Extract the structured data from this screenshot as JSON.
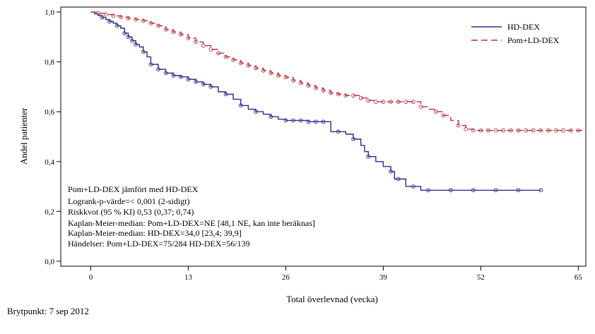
{
  "chart_data": {
    "type": "line",
    "title": "",
    "xlabel": "Total överlevnad (vecka)",
    "ylabel": "Andel patienter",
    "xlim": [
      -4,
      66
    ],
    "ylim": [
      -0.02,
      1.02
    ],
    "x_ticks": [
      0,
      13,
      26,
      39,
      52,
      65
    ],
    "x_tick_labels": [
      "0",
      "13",
      "26",
      "39",
      "52",
      "65"
    ],
    "y_ticks": [
      0.0,
      0.2,
      0.4,
      0.6,
      0.8,
      1.0
    ],
    "y_tick_labels": [
      "0,0",
      "0,2",
      "0,4",
      "0,6",
      "0,8",
      "1,0"
    ],
    "grid": false,
    "legend_position": "top-right",
    "series": [
      {
        "name": "HD-DEX",
        "color": "#2b2b8c",
        "style": "solid",
        "steps": [
          [
            0,
            1.0
          ],
          [
            0.5,
            0.993
          ],
          [
            1,
            0.986
          ],
          [
            1.5,
            0.978
          ],
          [
            2,
            0.97
          ],
          [
            2.5,
            0.962
          ],
          [
            3,
            0.955
          ],
          [
            3.5,
            0.945
          ],
          [
            4,
            0.935
          ],
          [
            4.5,
            0.915
          ],
          [
            5,
            0.9
          ],
          [
            5.5,
            0.885
          ],
          [
            6,
            0.87
          ],
          [
            6.5,
            0.86
          ],
          [
            7,
            0.84
          ],
          [
            7.5,
            0.82
          ],
          [
            8,
            0.79
          ],
          [
            9,
            0.77
          ],
          [
            10,
            0.755
          ],
          [
            11,
            0.745
          ],
          [
            12,
            0.74
          ],
          [
            13,
            0.73
          ],
          [
            14,
            0.72
          ],
          [
            15,
            0.71
          ],
          [
            16,
            0.7
          ],
          [
            17,
            0.68
          ],
          [
            18,
            0.67
          ],
          [
            19,
            0.65
          ],
          [
            20,
            0.625
          ],
          [
            21,
            0.61
          ],
          [
            22,
            0.6
          ],
          [
            23,
            0.59
          ],
          [
            24,
            0.58
          ],
          [
            25,
            0.57
          ],
          [
            26,
            0.565
          ],
          [
            29,
            0.56
          ],
          [
            31,
            0.56
          ],
          [
            32,
            0.52
          ],
          [
            34,
            0.51
          ],
          [
            35,
            0.49
          ],
          [
            36,
            0.465
          ],
          [
            36.5,
            0.44
          ],
          [
            37,
            0.42
          ],
          [
            38,
            0.4
          ],
          [
            39,
            0.38
          ],
          [
            40,
            0.36
          ],
          [
            40.5,
            0.33
          ],
          [
            42,
            0.3
          ],
          [
            44,
            0.285
          ],
          [
            60,
            0.285
          ]
        ],
        "censor_x": [
          1.5,
          2.5,
          3.5,
          4.5,
          5,
          5.5,
          6,
          7,
          8,
          9,
          10,
          11,
          12,
          13,
          14,
          15,
          16,
          18,
          20,
          22,
          24,
          26,
          27,
          28,
          29,
          30,
          31,
          33,
          35,
          37,
          40,
          41,
          43,
          45,
          48,
          51,
          54,
          57,
          60
        ]
      },
      {
        "name": "Pom+LD-DEX",
        "color": "#b8323c",
        "style": "dashed",
        "steps": [
          [
            0,
            1.0
          ],
          [
            1,
            0.995
          ],
          [
            2,
            0.99
          ],
          [
            3,
            0.985
          ],
          [
            4,
            0.98
          ],
          [
            5,
            0.975
          ],
          [
            6,
            0.97
          ],
          [
            7,
            0.965
          ],
          [
            8,
            0.955
          ],
          [
            9,
            0.945
          ],
          [
            10,
            0.93
          ],
          [
            11,
            0.92
          ],
          [
            12,
            0.91
          ],
          [
            13,
            0.895
          ],
          [
            14,
            0.88
          ],
          [
            15,
            0.865
          ],
          [
            16,
            0.85
          ],
          [
            17,
            0.835
          ],
          [
            18,
            0.82
          ],
          [
            19,
            0.808
          ],
          [
            20,
            0.795
          ],
          [
            21,
            0.785
          ],
          [
            22,
            0.775
          ],
          [
            23,
            0.765
          ],
          [
            24,
            0.755
          ],
          [
            25,
            0.745
          ],
          [
            26,
            0.738
          ],
          [
            27,
            0.725
          ],
          [
            28,
            0.715
          ],
          [
            29,
            0.705
          ],
          [
            30,
            0.695
          ],
          [
            31,
            0.685
          ],
          [
            32,
            0.675
          ],
          [
            33,
            0.67
          ],
          [
            34,
            0.665
          ],
          [
            36,
            0.655
          ],
          [
            37,
            0.645
          ],
          [
            38,
            0.64
          ],
          [
            42,
            0.64
          ],
          [
            44,
            0.62
          ],
          [
            45,
            0.61
          ],
          [
            46,
            0.6
          ],
          [
            47,
            0.585
          ],
          [
            48,
            0.565
          ],
          [
            49,
            0.545
          ],
          [
            50,
            0.53
          ],
          [
            51,
            0.525
          ],
          [
            66,
            0.525
          ]
        ],
        "censor_x": [
          1,
          2,
          3,
          4,
          5,
          6,
          7,
          8,
          9,
          10,
          11,
          12,
          13,
          14,
          15,
          16,
          17,
          18,
          19,
          20,
          21,
          22,
          23,
          24,
          25,
          26,
          27,
          28,
          29,
          30,
          31,
          32,
          33,
          34,
          35,
          36,
          37,
          38,
          39,
          40,
          41,
          42,
          43,
          44,
          46,
          47,
          49,
          50,
          51,
          52,
          53,
          54,
          55,
          56,
          57,
          58,
          59,
          60,
          61,
          62,
          63,
          64,
          65
        ]
      }
    ],
    "annotations": [
      "Pom+LD-DEX jämfört med HD-DEX",
      "Logrank-p-värde=< 0,001 (2-sidigt)",
      "Riskkvot (95 % KI) 0,53 (0,37; 0,74)",
      "Kaplan-Meier-median: Pom+LD-DEX=NE [48,1 NE, kan inte beräknas]",
      "Kaplan-Meier-median: HD-DEX=34,0 [23,4; 39,9]",
      "Händelser: Pom+LD-DEX=75/284 HD-DEX=56/139"
    ]
  },
  "footnote": "Brytpunkt: 7 sep 2012"
}
